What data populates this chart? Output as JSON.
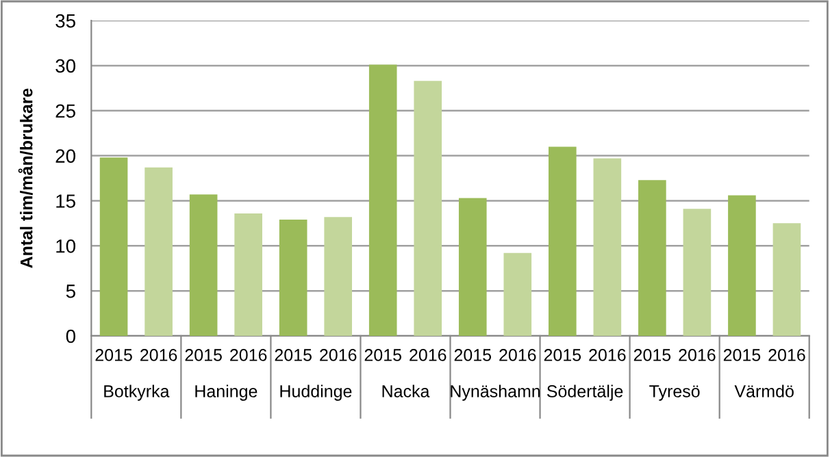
{
  "chart_data": {
    "type": "bar",
    "ylabel": "Antal tim/mån/brukare",
    "categories": [
      "Botkyrka",
      "Haninge",
      "Huddinge",
      "Nacka",
      "Nynäshamn",
      "Södertälje",
      "Tyresö",
      "Värmdö"
    ],
    "series": [
      {
        "name": "2015",
        "color": "#9bbb59",
        "values": [
          19.8,
          15.7,
          12.9,
          30.1,
          15.3,
          21.0,
          17.3,
          15.6
        ]
      },
      {
        "name": "2016",
        "color": "#c3d69b",
        "values": [
          18.7,
          13.6,
          13.2,
          28.3,
          9.2,
          19.7,
          14.1,
          12.5
        ]
      }
    ],
    "ylim": [
      0,
      35
    ],
    "yticks": [
      0,
      5,
      10,
      15,
      20,
      25,
      30,
      35
    ],
    "grid": "y",
    "legend": false
  }
}
